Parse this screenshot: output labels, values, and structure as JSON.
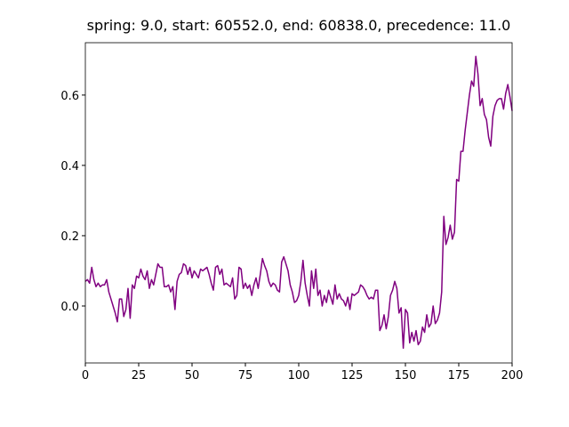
{
  "chart_data": {
    "type": "line",
    "title": "spring: 9.0, start: 60552.0, end: 60838.0, precedence: 11.0",
    "x": [
      0,
      1,
      2,
      3,
      4,
      5,
      6,
      7,
      8,
      9,
      10,
      11,
      12,
      13,
      14,
      15,
      16,
      17,
      18,
      19,
      20,
      21,
      22,
      23,
      24,
      25,
      26,
      27,
      28,
      29,
      30,
      31,
      32,
      33,
      34,
      35,
      36,
      37,
      38,
      39,
      40,
      41,
      42,
      43,
      44,
      45,
      46,
      47,
      48,
      49,
      50,
      51,
      52,
      53,
      54,
      55,
      56,
      57,
      58,
      59,
      60,
      61,
      62,
      63,
      64,
      65,
      66,
      67,
      68,
      69,
      70,
      71,
      72,
      73,
      74,
      75,
      76,
      77,
      78,
      79,
      80,
      81,
      82,
      83,
      84,
      85,
      86,
      87,
      88,
      89,
      90,
      91,
      92,
      93,
      94,
      95,
      96,
      97,
      98,
      99,
      100,
      101,
      102,
      103,
      104,
      105,
      106,
      107,
      108,
      109,
      110,
      111,
      112,
      113,
      114,
      115,
      116,
      117,
      118,
      119,
      120,
      121,
      122,
      123,
      124,
      125,
      126,
      127,
      128,
      129,
      130,
      131,
      132,
      133,
      134,
      135,
      136,
      137,
      138,
      139,
      140,
      141,
      142,
      143,
      144,
      145,
      146,
      147,
      148,
      149,
      150,
      151,
      152,
      153,
      154,
      155,
      156,
      157,
      158,
      159,
      160,
      161,
      162,
      163,
      164,
      165,
      166,
      167,
      168,
      169,
      170,
      171,
      172,
      173,
      174,
      175,
      176,
      177,
      178,
      179,
      180,
      181,
      182,
      183,
      184,
      185,
      186,
      187,
      188,
      189,
      190,
      191,
      192,
      193,
      194,
      195,
      196,
      197,
      198,
      199,
      200
    ],
    "series": [
      {
        "color": "#800080",
        "values": [
          0.07,
          0.075,
          0.065,
          0.11,
          0.075,
          0.055,
          0.065,
          0.055,
          0.06,
          0.06,
          0.075,
          0.04,
          0.02,
          0.0,
          -0.02,
          -0.045,
          0.02,
          0.02,
          -0.03,
          -0.01,
          0.05,
          -0.035,
          0.06,
          0.05,
          0.085,
          0.08,
          0.105,
          0.085,
          0.075,
          0.1,
          0.05,
          0.075,
          0.06,
          0.09,
          0.12,
          0.11,
          0.11,
          0.055,
          0.055,
          0.06,
          0.04,
          0.055,
          -0.01,
          0.07,
          0.09,
          0.095,
          0.12,
          0.115,
          0.09,
          0.11,
          0.08,
          0.1,
          0.09,
          0.08,
          0.105,
          0.1,
          0.105,
          0.11,
          0.09,
          0.065,
          0.045,
          0.11,
          0.115,
          0.09,
          0.105,
          0.06,
          0.065,
          0.06,
          0.055,
          0.08,
          0.02,
          0.03,
          0.11,
          0.105,
          0.05,
          0.065,
          0.05,
          0.06,
          0.03,
          0.06,
          0.08,
          0.05,
          0.09,
          0.135,
          0.115,
          0.1,
          0.07,
          0.055,
          0.065,
          0.06,
          0.045,
          0.04,
          0.125,
          0.14,
          0.12,
          0.1,
          0.06,
          0.04,
          0.01,
          0.015,
          0.03,
          0.07,
          0.13,
          0.065,
          0.03,
          0.0,
          0.1,
          0.05,
          0.105,
          0.03,
          0.045,
          0.0,
          0.03,
          0.01,
          0.045,
          0.025,
          0.005,
          0.06,
          0.02,
          0.035,
          0.02,
          0.015,
          0.0,
          0.025,
          -0.01,
          0.035,
          0.03,
          0.035,
          0.04,
          0.06,
          0.055,
          0.045,
          0.03,
          0.02,
          0.025,
          0.02,
          0.045,
          0.045,
          -0.07,
          -0.055,
          -0.025,
          -0.065,
          -0.03,
          0.03,
          0.045,
          0.07,
          0.05,
          -0.02,
          -0.005,
          -0.12,
          -0.01,
          -0.02,
          -0.105,
          -0.075,
          -0.1,
          -0.07,
          -0.11,
          -0.1,
          -0.06,
          -0.075,
          -0.025,
          -0.06,
          -0.05,
          0.0,
          -0.05,
          -0.04,
          -0.02,
          0.04,
          0.255,
          0.175,
          0.195,
          0.23,
          0.19,
          0.21,
          0.36,
          0.355,
          0.44,
          0.44,
          0.5,
          0.55,
          0.6,
          0.64,
          0.625,
          0.71,
          0.66,
          0.57,
          0.59,
          0.545,
          0.53,
          0.48,
          0.455,
          0.54,
          0.57,
          0.585,
          0.59,
          0.59,
          0.56,
          0.605,
          0.63,
          0.595,
          0.555
        ]
      }
    ],
    "xlim": [
      0,
      200
    ],
    "xticks": [
      0,
      25,
      50,
      75,
      100,
      125,
      150,
      175,
      200
    ],
    "ylim": [
      -0.162,
      0.749
    ],
    "yticks": [
      {
        "value": 0,
        "label": "0.0"
      },
      0.2,
      0.4,
      0.6
    ]
  }
}
